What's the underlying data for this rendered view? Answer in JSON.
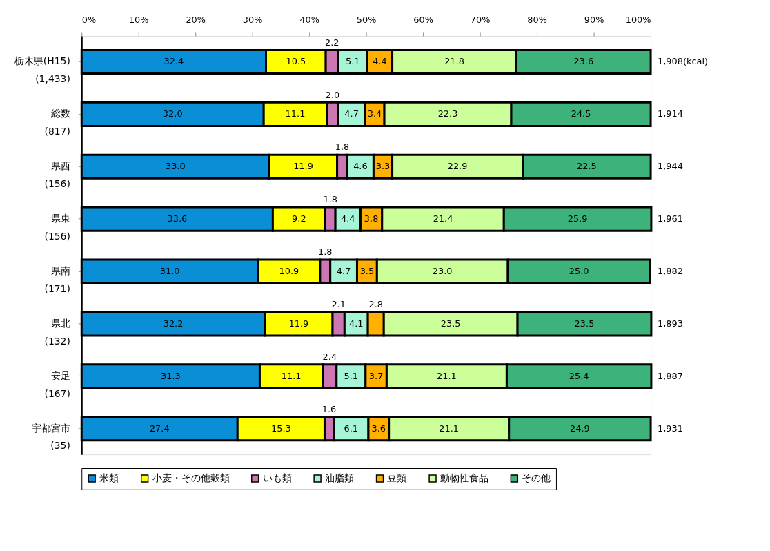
{
  "chart_data": {
    "type": "bar",
    "orientation": "horizontal",
    "stacked": true,
    "grid": false,
    "legend": "bottom",
    "categories": [
      "栃木県(H15)\n(1,433)",
      "総数\n(817)",
      "県西\n(156)",
      "県東\n(156)",
      "県南\n(171)",
      "県北\n(132)",
      "安足\n(167)",
      "宇都宮市\n(35)"
    ],
    "xlim": [
      0,
      100
    ],
    "xticks": [
      {
        "value": 0,
        "label": "0%"
      },
      {
        "value": 10,
        "label": "10%"
      },
      {
        "value": 20,
        "label": "20%"
      },
      {
        "value": 30,
        "label": "30%"
      },
      {
        "value": 40,
        "label": "40%"
      },
      {
        "value": 50,
        "label": "50%"
      },
      {
        "value": 60,
        "label": "60%"
      },
      {
        "value": 70,
        "label": "70%"
      },
      {
        "value": 80,
        "label": "80%"
      },
      {
        "value": 90,
        "label": "90%"
      },
      {
        "value": 100,
        "label": "100%"
      }
    ],
    "series": [
      {
        "name": "米類",
        "color": "#0a8fd6",
        "values": [
          32.4,
          32.0,
          33.0,
          33.6,
          31.0,
          32.2,
          31.3,
          27.4
        ],
        "value_labels": [
          "32.4",
          "32.0",
          "33.0",
          "33.6",
          "31.0",
          "32.2",
          "31.3",
          "27.4"
        ]
      },
      {
        "name": "小麦・その他穀類",
        "color": "#ffff00",
        "values": [
          10.5,
          11.1,
          11.9,
          9.2,
          10.9,
          11.9,
          11.1,
          15.3
        ],
        "value_labels": [
          "10.5",
          "11.1",
          "11.9",
          "9.2",
          "10.9",
          "11.9",
          "11.1",
          "15.3"
        ]
      },
      {
        "name": "いも類",
        "color": "#cc77b4",
        "values": [
          2.2,
          2.0,
          1.8,
          1.8,
          1.8,
          2.1,
          2.4,
          1.6
        ],
        "value_labels": [
          "2.2",
          "2.0",
          "1.8",
          "1.8",
          "1.8",
          "2.1",
          "2.4",
          "1.6"
        ]
      },
      {
        "name": "油脂類",
        "color": "#a6f5d6",
        "values": [
          5.1,
          4.7,
          4.6,
          4.4,
          4.7,
          4.1,
          5.1,
          6.1
        ],
        "value_labels": [
          "5.1",
          "4.7",
          "4.6",
          "4.4",
          "4.7",
          "4.1",
          "5.1",
          "6.1"
        ]
      },
      {
        "name": "豆類",
        "color": "#ffb000",
        "values": [
          4.4,
          3.4,
          3.3,
          3.8,
          3.5,
          2.8,
          3.7,
          3.6
        ],
        "value_labels": [
          "4.4",
          "3.4",
          "3.3",
          "3.8",
          "3.5",
          "2.8",
          "3.7",
          "3.6"
        ]
      },
      {
        "name": "動物性食品",
        "color": "#ccff99",
        "values": [
          21.8,
          22.3,
          22.9,
          21.4,
          23.0,
          23.5,
          21.1,
          21.1
        ],
        "value_labels": [
          "21.8",
          "22.3",
          "22.9",
          "21.4",
          "23.0",
          "23.5",
          "21.1",
          "21.1"
        ]
      },
      {
        "name": "その他",
        "color": "#3db27a",
        "values": [
          23.6,
          24.5,
          22.5,
          25.9,
          25.0,
          23.5,
          25.4,
          24.9
        ],
        "value_labels": [
          "23.6",
          "24.5",
          "22.5",
          "25.9",
          "25.0",
          "23.5",
          "25.4",
          "24.9"
        ]
      }
    ],
    "annotations": [
      "1,908(kcal)",
      "1,914",
      "1,944",
      "1,961",
      "1,882",
      "1,893",
      "1,887",
      "1,931"
    ]
  }
}
